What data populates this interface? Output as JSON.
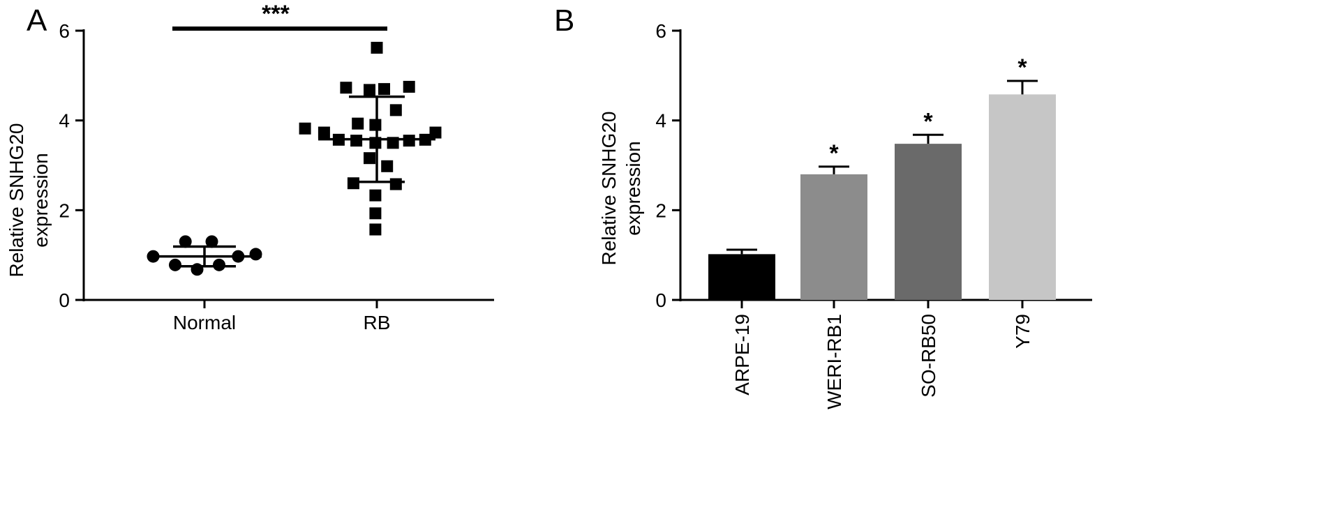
{
  "panels": {
    "a": {
      "letter": "A"
    },
    "b": {
      "letter": "B"
    }
  },
  "chart_data": [
    {
      "type": "scatter",
      "ylabel_line1": "Relative SNHG20",
      "ylabel_line2": "expression",
      "ylim": [
        0,
        6
      ],
      "yticks": [
        0,
        2,
        4,
        6
      ],
      "categories": [
        "Normal",
        "RB"
      ],
      "groups": [
        {
          "name": "Normal",
          "marker": "circle",
          "points": [
            {
              "x": -0.13,
              "y": 1.3
            },
            {
              "x": 0.05,
              "y": 1.3
            },
            {
              "x": -0.35,
              "y": 0.97
            },
            {
              "x": 0.23,
              "y": 0.97
            },
            {
              "x": 0.35,
              "y": 1.02
            },
            {
              "x": -0.2,
              "y": 0.78
            },
            {
              "x": 0.1,
              "y": 0.78
            },
            {
              "x": -0.05,
              "y": 0.68
            }
          ],
          "mean": 0.97,
          "sd_low": 0.75,
          "sd_high": 1.19
        },
        {
          "name": "RB",
          "marker": "square",
          "points": [
            {
              "x": 0.0,
              "y": 5.62
            },
            {
              "x": -0.21,
              "y": 4.73
            },
            {
              "x": -0.05,
              "y": 4.68
            },
            {
              "x": 0.05,
              "y": 4.7
            },
            {
              "x": 0.22,
              "y": 4.75
            },
            {
              "x": 0.13,
              "y": 4.23
            },
            {
              "x": -0.13,
              "y": 3.93
            },
            {
              "x": -0.01,
              "y": 3.9
            },
            {
              "x": -0.49,
              "y": 3.82
            },
            {
              "x": -0.36,
              "y": 3.73
            },
            {
              "x": 0.4,
              "y": 3.73
            },
            {
              "x": -0.26,
              "y": 3.57
            },
            {
              "x": -0.14,
              "y": 3.55
            },
            {
              "x": -0.01,
              "y": 3.5
            },
            {
              "x": 0.11,
              "y": 3.5
            },
            {
              "x": 0.22,
              "y": 3.55
            },
            {
              "x": 0.33,
              "y": 3.57
            },
            {
              "x": -0.05,
              "y": 3.16
            },
            {
              "x": 0.07,
              "y": 2.98
            },
            {
              "x": -0.16,
              "y": 2.6
            },
            {
              "x": 0.13,
              "y": 2.58
            },
            {
              "x": -0.01,
              "y": 2.33
            },
            {
              "x": -0.01,
              "y": 1.93
            },
            {
              "x": -0.01,
              "y": 1.57
            }
          ],
          "mean": 3.58,
          "sd_low": 2.63,
          "sd_high": 4.53
        }
      ],
      "significance": "***"
    },
    {
      "type": "bar",
      "ylabel_line1": "Relative SNHG20",
      "ylabel_line2": "expression",
      "ylim": [
        0,
        6
      ],
      "yticks": [
        0,
        2,
        4,
        6
      ],
      "categories": [
        "ARPE-19",
        "WERI-RB1",
        "SO-RB50",
        "Y79"
      ],
      "values": [
        1.02,
        2.8,
        3.48,
        4.58
      ],
      "errors": [
        0.1,
        0.17,
        0.2,
        0.3
      ],
      "significance": [
        "",
        "*",
        "*",
        "*"
      ],
      "colors": [
        "#000000",
        "#8c8c8c",
        "#6a6a6a",
        "#c6c6c6"
      ]
    }
  ]
}
